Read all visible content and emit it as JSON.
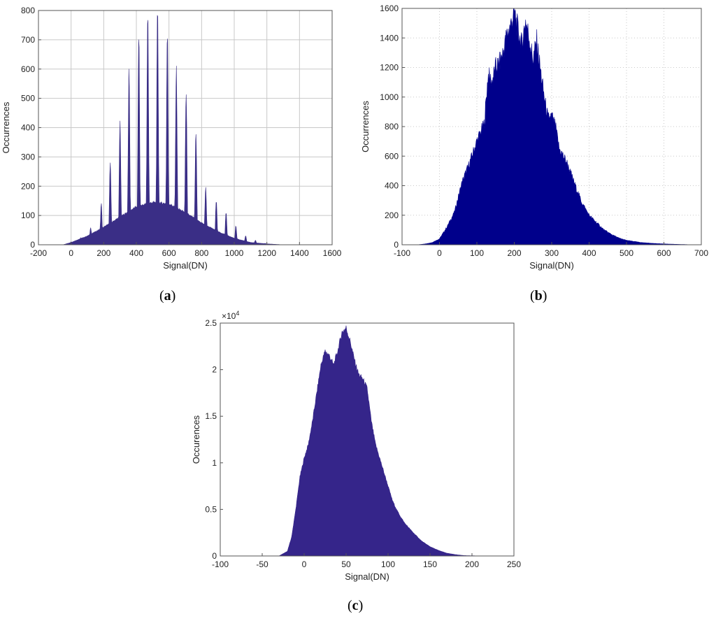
{
  "figure": {
    "captions": [
      {
        "open": "(",
        "letter": "a",
        "close": ")"
      },
      {
        "open": "(",
        "letter": "b",
        "close": ")"
      },
      {
        "open": "(",
        "letter": "c",
        "close": ")"
      }
    ]
  },
  "colors": {
    "bars_a": "#3a2e86",
    "bars_b": "#00008b",
    "bars_c": "#35258a",
    "grid": "#c8c8c8"
  },
  "chart_data": [
    {
      "panel": "a",
      "type": "area",
      "xlabel": "Signal(DN)",
      "ylabel": "Occurrences",
      "xlim": [
        -200,
        1600
      ],
      "ylim": [
        0,
        800
      ],
      "xticks": [
        -200,
        0,
        200,
        400,
        600,
        800,
        1000,
        1200,
        1400,
        1600
      ],
      "yticks": [
        0,
        100,
        200,
        300,
        400,
        500,
        600,
        700,
        800
      ],
      "grid": "solid",
      "envelope": {
        "x": [
          -50,
          0,
          100,
          200,
          300,
          400,
          500,
          600,
          700,
          800,
          900,
          1000,
          1100,
          1200,
          1300
        ],
        "y": [
          0,
          8,
          30,
          60,
          95,
          130,
          145,
          140,
          110,
          75,
          45,
          22,
          8,
          3,
          0
        ]
      },
      "peaks": {
        "x": [
          0,
          60,
          120,
          185,
          240,
          300,
          355,
          415,
          470,
          530,
          590,
          645,
          705,
          765,
          825,
          890,
          950,
          1010,
          1070,
          1130,
          1190
        ],
        "y": [
          10,
          25,
          60,
          140,
          280,
          420,
          590,
          720,
          795,
          795,
          720,
          600,
          530,
          380,
          200,
          155,
          110,
          65,
          30,
          15,
          5
        ]
      }
    },
    {
      "panel": "b",
      "type": "area",
      "xlabel": "Signal(DN)",
      "ylabel": "Occurrences",
      "xlim": [
        -100,
        700
      ],
      "ylim": [
        0,
        1600
      ],
      "xticks": [
        -100,
        0,
        100,
        200,
        300,
        400,
        500,
        600,
        700
      ],
      "yticks": [
        0,
        200,
        400,
        600,
        800,
        1000,
        1200,
        1400,
        1600
      ],
      "grid": "dotted",
      "profile": {
        "x": [
          -60,
          -40,
          -20,
          0,
          20,
          40,
          60,
          80,
          100,
          120,
          130,
          140,
          150,
          160,
          170,
          180,
          190,
          200,
          210,
          220,
          230,
          240,
          250,
          260,
          270,
          280,
          290,
          300,
          310,
          320,
          340,
          360,
          380,
          400,
          420,
          440,
          460,
          480,
          500,
          540,
          580,
          620,
          680
        ],
        "y": [
          0,
          5,
          15,
          40,
          120,
          220,
          420,
          550,
          700,
          820,
          1150,
          1100,
          1200,
          1230,
          1300,
          1420,
          1480,
          1580,
          1450,
          1350,
          1520,
          1400,
          1250,
          1380,
          1180,
          1000,
          850,
          870,
          800,
          650,
          560,
          420,
          290,
          200,
          150,
          100,
          70,
          45,
          30,
          15,
          8,
          4,
          0
        ]
      }
    },
    {
      "panel": "c",
      "type": "area",
      "xlabel": "Signal(DN)",
      "ylabel": "Occurences",
      "exponent": "×10",
      "exponent_power": "4",
      "xlim": [
        -100,
        250
      ],
      "ylim": [
        0,
        2.5
      ],
      "xticks": [
        -100,
        -50,
        0,
        50,
        100,
        150,
        200,
        250
      ],
      "yticks": [
        0,
        0.5,
        1,
        1.5,
        2,
        2.5
      ],
      "grid": "none",
      "profile": {
        "x": [
          -100,
          -30,
          -20,
          -15,
          -10,
          -5,
          0,
          5,
          10,
          15,
          20,
          25,
          30,
          35,
          40,
          45,
          50,
          55,
          60,
          65,
          70,
          75,
          80,
          85,
          90,
          95,
          100,
          105,
          110,
          115,
          120,
          130,
          140,
          150,
          160,
          170,
          180,
          190,
          200,
          250
        ],
        "y": [
          0,
          0,
          0.05,
          0.2,
          0.5,
          0.85,
          1.05,
          1.2,
          1.45,
          1.75,
          2.05,
          2.2,
          2.15,
          2.05,
          2.2,
          2.4,
          2.45,
          2.3,
          2.1,
          1.95,
          1.9,
          1.8,
          1.45,
          1.2,
          1.05,
          0.9,
          0.75,
          0.6,
          0.5,
          0.42,
          0.35,
          0.25,
          0.16,
          0.1,
          0.06,
          0.03,
          0.015,
          0.005,
          0.002,
          0
        ]
      }
    }
  ]
}
